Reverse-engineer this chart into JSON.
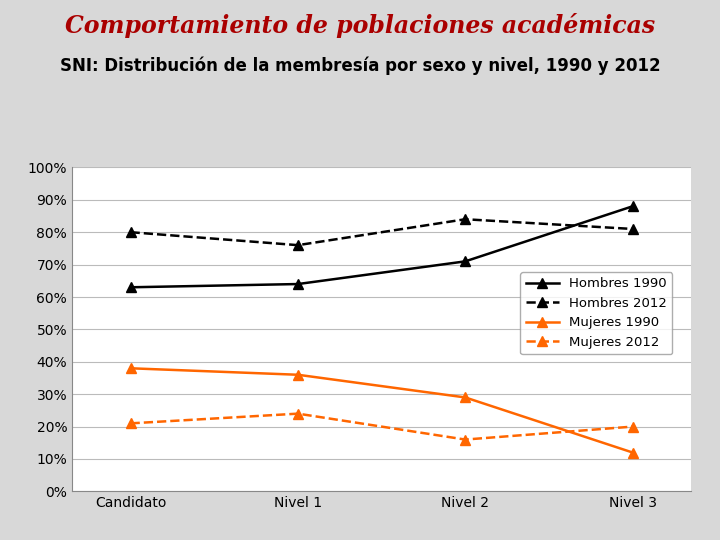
{
  "title": "Comportamiento de poblaciones académicas",
  "subtitle": "SNI: Distribución de la membresía por sexo y nivel, 1990 y 2012",
  "categories": [
    "Candidato",
    "Nivel 1",
    "Nivel 2",
    "Nivel 3"
  ],
  "series": [
    {
      "label": "Hombres 1990",
      "values": [
        0.63,
        0.64,
        0.71,
        0.88
      ],
      "color": "#000000",
      "linestyle": "solid",
      "marker": "^",
      "linewidth": 1.8,
      "markersize": 7
    },
    {
      "label": "Hombres 2012",
      "values": [
        0.8,
        0.76,
        0.84,
        0.81
      ],
      "color": "#000000",
      "linestyle": "dashed",
      "marker": "^",
      "linewidth": 1.8,
      "markersize": 7
    },
    {
      "label": "Mujeres 1990",
      "values": [
        0.38,
        0.36,
        0.29,
        0.12
      ],
      "color": "#FF6600",
      "linestyle": "solid",
      "marker": "^",
      "linewidth": 1.8,
      "markersize": 7
    },
    {
      "label": "Mujeres 2012",
      "values": [
        0.21,
        0.24,
        0.16,
        0.2
      ],
      "color": "#FF6600",
      "linestyle": "dashed",
      "marker": "^",
      "linewidth": 1.8,
      "markersize": 7
    }
  ],
  "ylim": [
    0.0,
    1.0
  ],
  "yticks": [
    0.0,
    0.1,
    0.2,
    0.3,
    0.4,
    0.5,
    0.6,
    0.7,
    0.8,
    0.9,
    1.0
  ],
  "title_color": "#AA0000",
  "subtitle_color": "#000000",
  "background_color": "#D8D8D8",
  "plot_background": "#FFFFFF",
  "title_fontsize": 17,
  "subtitle_fontsize": 12,
  "tick_fontsize": 10,
  "legend_fontsize": 9.5,
  "grid_color": "#BBBBBB"
}
